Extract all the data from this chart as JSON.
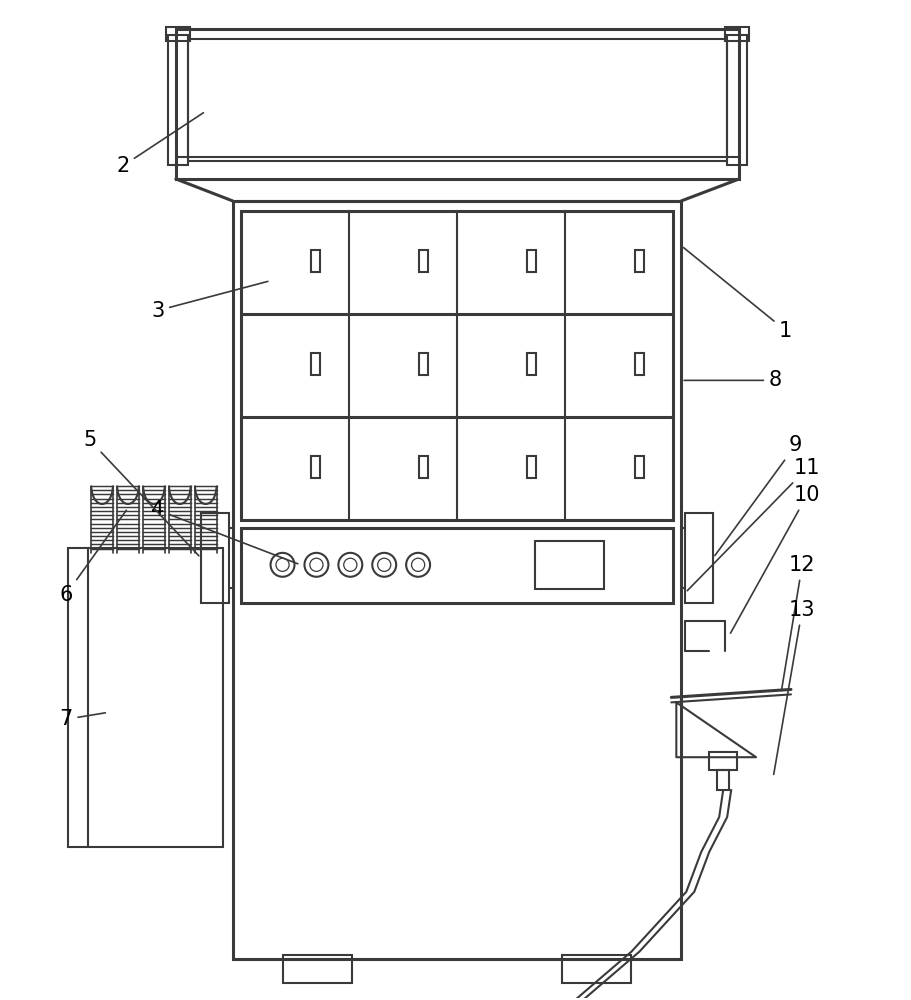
{
  "bg_color": "#ffffff",
  "line_color": "#3a3a3a",
  "line_width": 1.5,
  "thick_line": 2.2,
  "fig_w": 9.11,
  "fig_h": 10.0
}
